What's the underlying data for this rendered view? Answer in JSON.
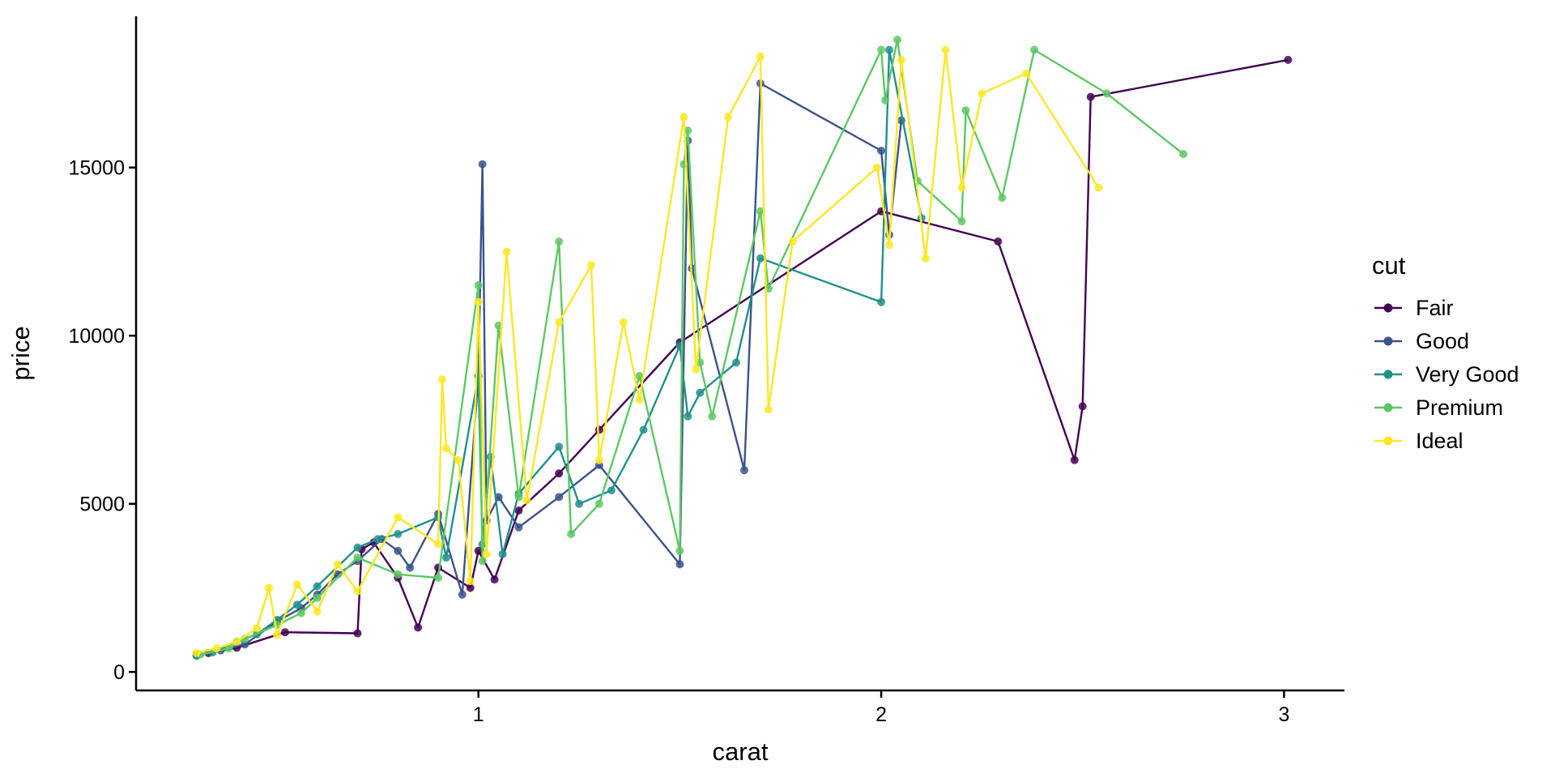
{
  "chart_data": {
    "type": "line",
    "title": "",
    "xlabel": "carat",
    "ylabel": "price",
    "xlim": [
      0.15,
      3.15
    ],
    "ylim": [
      -550,
      19500
    ],
    "xticks": [
      1,
      2,
      3
    ],
    "xtick_labels": [
      "1",
      "2",
      "3"
    ],
    "yticks": [
      0,
      5000,
      10000,
      15000
    ],
    "ytick_labels": [
      "0",
      "5000",
      "10000",
      "15000"
    ],
    "grid": false,
    "legend": {
      "title": "cut",
      "position": "right"
    },
    "series": [
      {
        "name": "Fair",
        "color": "#440154",
        "points": [
          [
            0.33,
            560
          ],
          [
            0.4,
            720
          ],
          [
            0.52,
            1180
          ],
          [
            0.7,
            1150
          ],
          [
            0.71,
            3650
          ],
          [
            0.74,
            3850
          ],
          [
            0.8,
            2800
          ],
          [
            0.85,
            1320
          ],
          [
            0.9,
            3100
          ],
          [
            0.98,
            2500
          ],
          [
            1.0,
            3600
          ],
          [
            1.04,
            2750
          ],
          [
            1.1,
            4800
          ],
          [
            1.2,
            5900
          ],
          [
            1.3,
            7200
          ],
          [
            1.5,
            9800
          ],
          [
            2.0,
            13700
          ],
          [
            2.29,
            12800
          ],
          [
            2.48,
            6300
          ],
          [
            2.5,
            7900
          ],
          [
            2.52,
            17100
          ],
          [
            3.01,
            18200
          ]
        ]
      },
      {
        "name": "Good",
        "color": "#3b528b",
        "points": [
          [
            0.3,
            500
          ],
          [
            0.36,
            640
          ],
          [
            0.42,
            820
          ],
          [
            0.5,
            1500
          ],
          [
            0.56,
            1900
          ],
          [
            0.6,
            2300
          ],
          [
            0.65,
            2900
          ],
          [
            0.7,
            3300
          ],
          [
            0.76,
            3950
          ],
          [
            0.8,
            3600
          ],
          [
            0.83,
            3100
          ],
          [
            0.9,
            4700
          ],
          [
            0.96,
            2300
          ],
          [
            1.0,
            8800
          ],
          [
            1.01,
            15100
          ],
          [
            1.02,
            4500
          ],
          [
            1.05,
            5200
          ],
          [
            1.1,
            4300
          ],
          [
            1.2,
            5200
          ],
          [
            1.3,
            6150
          ],
          [
            1.5,
            3200
          ],
          [
            1.52,
            15800
          ],
          [
            1.53,
            12000
          ],
          [
            1.66,
            6000
          ],
          [
            1.7,
            17500
          ],
          [
            2.0,
            15500
          ],
          [
            2.02,
            13000
          ],
          [
            2.05,
            16400
          ]
        ]
      },
      {
        "name": "Very Good",
        "color": "#21908c",
        "points": [
          [
            0.3,
            480
          ],
          [
            0.34,
            580
          ],
          [
            0.4,
            900
          ],
          [
            0.45,
            1120
          ],
          [
            0.5,
            1550
          ],
          [
            0.55,
            2000
          ],
          [
            0.6,
            2550
          ],
          [
            0.7,
            3700
          ],
          [
            0.75,
            3950
          ],
          [
            0.8,
            4100
          ],
          [
            0.9,
            4600
          ],
          [
            0.92,
            3400
          ],
          [
            1.0,
            8800
          ],
          [
            1.01,
            3800
          ],
          [
            1.03,
            6400
          ],
          [
            1.06,
            3500
          ],
          [
            1.1,
            5300
          ],
          [
            1.2,
            6700
          ],
          [
            1.25,
            5000
          ],
          [
            1.33,
            5400
          ],
          [
            1.41,
            7200
          ],
          [
            1.5,
            9700
          ],
          [
            1.52,
            7600
          ],
          [
            1.55,
            8300
          ],
          [
            1.64,
            9200
          ],
          [
            1.7,
            12300
          ],
          [
            2.0,
            11000
          ],
          [
            2.02,
            18500
          ],
          [
            2.1,
            13500
          ]
        ]
      },
      {
        "name": "Premium",
        "color": "#5dc863",
        "points": [
          [
            0.31,
            520
          ],
          [
            0.38,
            700
          ],
          [
            0.42,
            980
          ],
          [
            0.5,
            1400
          ],
          [
            0.56,
            1750
          ],
          [
            0.6,
            2200
          ],
          [
            0.7,
            3400
          ],
          [
            0.8,
            2900
          ],
          [
            0.9,
            2800
          ],
          [
            1.0,
            11500
          ],
          [
            1.01,
            3300
          ],
          [
            1.05,
            10300
          ],
          [
            1.1,
            5200
          ],
          [
            1.2,
            12800
          ],
          [
            1.23,
            4100
          ],
          [
            1.3,
            5000
          ],
          [
            1.4,
            8800
          ],
          [
            1.5,
            3600
          ],
          [
            1.51,
            15100
          ],
          [
            1.52,
            16100
          ],
          [
            1.55,
            9200
          ],
          [
            1.58,
            7600
          ],
          [
            1.7,
            13700
          ],
          [
            1.72,
            11400
          ],
          [
            2.0,
            18500
          ],
          [
            2.01,
            17000
          ],
          [
            2.04,
            18800
          ],
          [
            2.09,
            14600
          ],
          [
            2.2,
            13400
          ],
          [
            2.21,
            16700
          ],
          [
            2.3,
            14100
          ],
          [
            2.38,
            18500
          ],
          [
            2.56,
            17200
          ],
          [
            2.75,
            15400
          ]
        ]
      },
      {
        "name": "Ideal",
        "color": "#fde725",
        "points": [
          [
            0.3,
            560
          ],
          [
            0.35,
            700
          ],
          [
            0.4,
            900
          ],
          [
            0.45,
            1300
          ],
          [
            0.48,
            2500
          ],
          [
            0.5,
            1100
          ],
          [
            0.55,
            2600
          ],
          [
            0.6,
            1800
          ],
          [
            0.65,
            3200
          ],
          [
            0.7,
            2400
          ],
          [
            0.8,
            4600
          ],
          [
            0.9,
            3800
          ],
          [
            0.91,
            8700
          ],
          [
            0.92,
            6650
          ],
          [
            0.95,
            6300
          ],
          [
            0.98,
            2700
          ],
          [
            1.0,
            11000
          ],
          [
            1.02,
            3500
          ],
          [
            1.07,
            12500
          ],
          [
            1.12,
            5100
          ],
          [
            1.2,
            10400
          ],
          [
            1.28,
            12100
          ],
          [
            1.3,
            6300
          ],
          [
            1.36,
            10400
          ],
          [
            1.4,
            8100
          ],
          [
            1.51,
            16500
          ],
          [
            1.54,
            9000
          ],
          [
            1.62,
            16500
          ],
          [
            1.7,
            18300
          ],
          [
            1.72,
            7800
          ],
          [
            1.78,
            12800
          ],
          [
            1.99,
            15000
          ],
          [
            2.02,
            12700
          ],
          [
            2.05,
            18200
          ],
          [
            2.11,
            12300
          ],
          [
            2.16,
            18500
          ],
          [
            2.2,
            14400
          ],
          [
            2.25,
            17200
          ],
          [
            2.36,
            17800
          ],
          [
            2.54,
            14400
          ]
        ]
      }
    ]
  }
}
